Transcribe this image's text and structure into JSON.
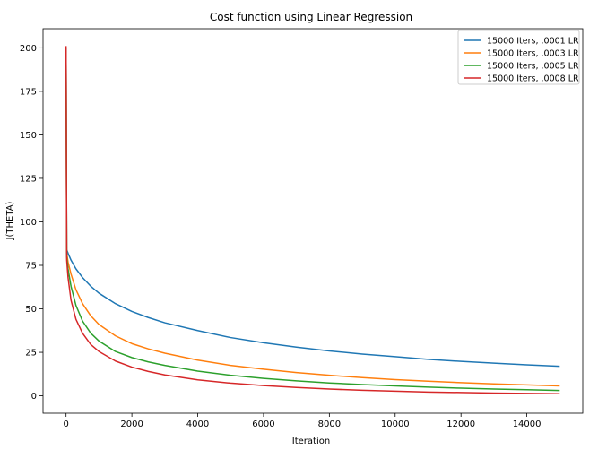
{
  "chart_data": {
    "type": "line",
    "title": "Cost function using Linear Regression",
    "xlabel": "Iteration",
    "ylabel": "J(THETA)",
    "xlim": [
      -700,
      15700
    ],
    "ylim": [
      -10,
      211
    ],
    "grid": false,
    "legend_position": "top-right",
    "x_ticks": [
      0,
      2000,
      4000,
      6000,
      8000,
      10000,
      12000,
      14000
    ],
    "y_ticks": [
      0,
      25,
      50,
      75,
      100,
      125,
      150,
      175,
      200
    ],
    "x_tick_labels": [
      "0",
      "2000",
      "4000",
      "6000",
      "8000",
      "10000",
      "12000",
      "14000"
    ],
    "y_tick_labels": [
      "0",
      "25",
      "50",
      "75",
      "100",
      "125",
      "150",
      "175",
      "200"
    ],
    "series": [
      {
        "name": "15000 Iters, .0001 LR",
        "color": "#1f77b4",
        "x": [
          0,
          20,
          60,
          150,
          300,
          500,
          750,
          1000,
          1500,
          2000,
          2500,
          3000,
          4000,
          5000,
          6000,
          7000,
          8000,
          9000,
          10000,
          11000,
          12000,
          13000,
          14000,
          15000
        ],
        "y": [
          200,
          84,
          82,
          78,
          73,
          68,
          63,
          59,
          53,
          48.5,
          45,
          42,
          37.5,
          33.5,
          30.5,
          28,
          25.8,
          24,
          22.5,
          21,
          19.8,
          18.8,
          17.8,
          17
        ]
      },
      {
        "name": "15000 Iters, .0003 LR",
        "color": "#ff7f0e",
        "x": [
          0,
          20,
          60,
          150,
          300,
          500,
          750,
          1000,
          1500,
          2000,
          2500,
          3000,
          4000,
          5000,
          6000,
          7000,
          8000,
          9000,
          10000,
          11000,
          12000,
          13000,
          14000,
          15000
        ],
        "y": [
          200,
          82,
          77,
          70,
          61,
          53,
          46,
          41,
          34.5,
          30,
          27,
          24.5,
          20.5,
          17.5,
          15.3,
          13.4,
          11.8,
          10.5,
          9.3,
          8.4,
          7.6,
          6.9,
          6.3,
          5.7
        ]
      },
      {
        "name": "15000 Iters, .0005 LR",
        "color": "#2ca02c",
        "x": [
          0,
          20,
          60,
          150,
          300,
          500,
          750,
          1000,
          1500,
          2000,
          2500,
          3000,
          4000,
          5000,
          6000,
          7000,
          8000,
          9000,
          10000,
          11000,
          12000,
          13000,
          14000,
          15000
        ],
        "y": [
          200,
          80,
          73,
          63,
          52,
          43,
          36,
          31.5,
          25.5,
          22,
          19.5,
          17.5,
          14.2,
          11.8,
          10,
          8.6,
          7.4,
          6.5,
          5.7,
          5,
          4.4,
          3.9,
          3.5,
          3.1
        ]
      },
      {
        "name": "15000 Iters, .0008 LR",
        "color": "#d62728",
        "x": [
          0,
          20,
          60,
          150,
          300,
          500,
          750,
          1000,
          1500,
          2000,
          2500,
          3000,
          4000,
          5000,
          6000,
          7000,
          8000,
          9000,
          10000,
          11000,
          12000,
          13000,
          14000,
          15000
        ],
        "y": [
          201,
          78,
          68,
          55,
          44,
          36,
          29.5,
          25.5,
          20,
          16.5,
          14,
          12,
          9.2,
          7.3,
          5.9,
          4.8,
          3.9,
          3.2,
          2.7,
          2.2,
          1.9,
          1.6,
          1.4,
          1.2
        ]
      }
    ]
  }
}
